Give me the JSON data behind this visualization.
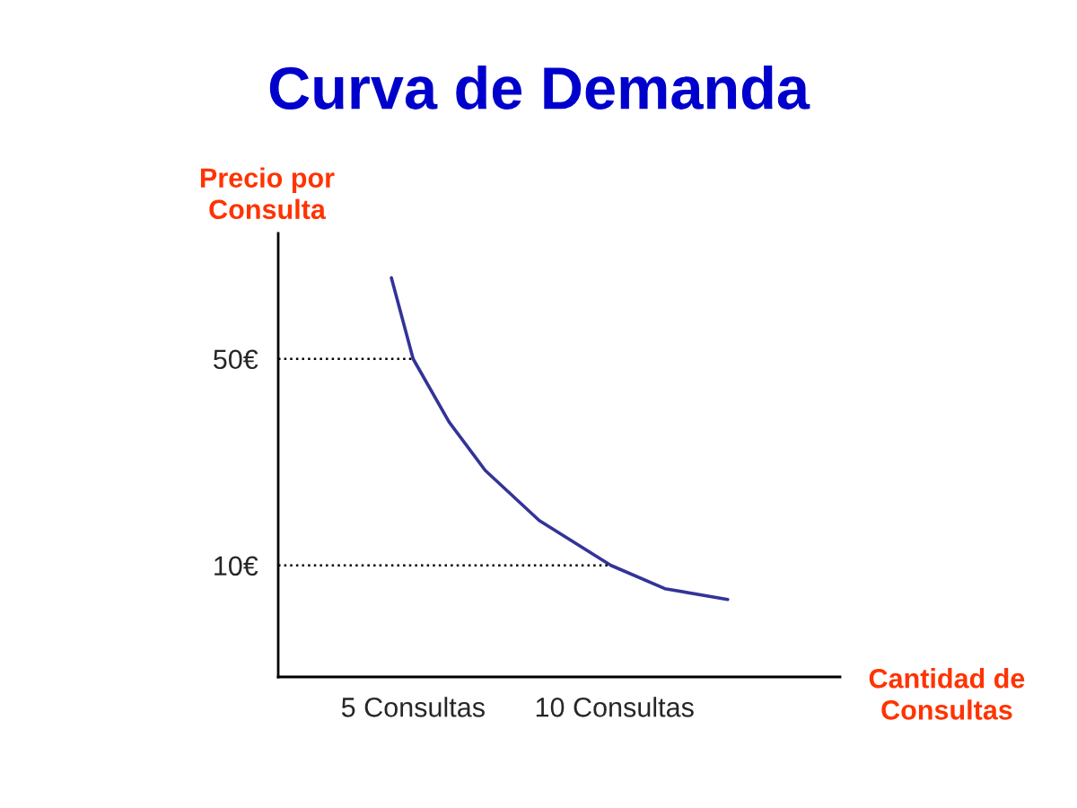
{
  "chart_data": {
    "type": "line",
    "title": "Curva de Demanda",
    "xlabel": "Cantidad de\nConsultas",
    "ylabel": "Precio por\nConsulta",
    "x": [
      4.46,
      5,
      5.89,
      6.79,
      8.13,
      9.91,
      11.25,
      12.81
    ],
    "series": [
      {
        "color": "#333399",
        "values": [
          65.7,
          50,
          37.8,
          28.4,
          18.7,
          10,
          5.5,
          3.4
        ]
      }
    ],
    "xlim": [
      1.65,
      15.6
    ],
    "ylim": [
      -11.6,
      74.3
    ],
    "xticks": [
      {
        "value": 5,
        "label": "5 Consultas"
      },
      {
        "value": 10,
        "label": "10 Consultas"
      }
    ],
    "yticks": [
      {
        "value": 50,
        "label": "50€"
      },
      {
        "value": 10,
        "label": "10€"
      }
    ],
    "ref_lines": [
      {
        "axis": "y",
        "value": 50,
        "color": "#000000",
        "line_style": "dotted"
      },
      {
        "axis": "y",
        "value": 10,
        "color": "#000000",
        "line_style": "dotted"
      }
    ],
    "grid": false,
    "legend": false,
    "marker": "none",
    "line_style": "solid"
  }
}
